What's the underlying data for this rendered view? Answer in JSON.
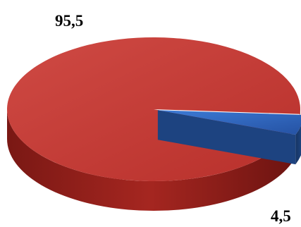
{
  "chart_data": {
    "type": "pie",
    "style": "3d",
    "legend": "none",
    "slices": [
      {
        "label": "95,5",
        "value": 95.5,
        "color": "#c0392b",
        "side_color": "#8b1e1a"
      },
      {
        "label": "4,5",
        "value": 4.5,
        "color": "#2e63b8",
        "side_color": "#1a3a6e"
      }
    ]
  }
}
